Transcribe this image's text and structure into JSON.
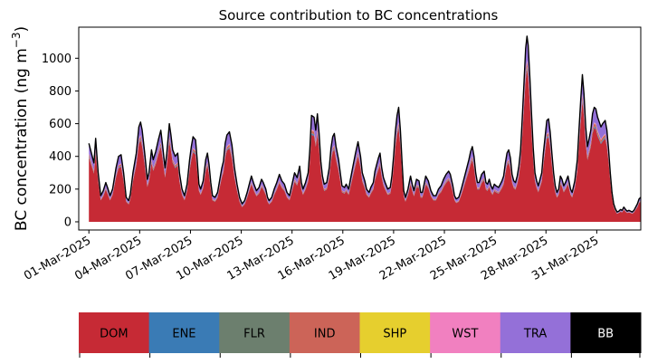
{
  "chart_data": {
    "type": "area",
    "stacked": true,
    "title": "Source contribution to BC concentrations",
    "ylabel": "BC concentration (ng m",
    "ylabel_sup": "−3",
    "ylabel_close": ")",
    "xlabel": "",
    "ylim": [
      -50,
      1190
    ],
    "yticks": [
      0,
      200,
      400,
      600,
      800,
      1000
    ],
    "xlim_days": [
      -0.6,
      32.6
    ],
    "xticks": [
      {
        "day": 0,
        "label": "01-Mar-2025"
      },
      {
        "day": 3,
        "label": "04-Mar-2025"
      },
      {
        "day": 6,
        "label": "07-Mar-2025"
      },
      {
        "day": 9,
        "label": "10-Mar-2025"
      },
      {
        "day": 12,
        "label": "13-Mar-2025"
      },
      {
        "day": 15,
        "label": "16-Mar-2025"
      },
      {
        "day": 18,
        "label": "19-Mar-2025"
      },
      {
        "day": 21,
        "label": "22-Mar-2025"
      },
      {
        "day": 24,
        "label": "25-Mar-2025"
      },
      {
        "day": 27,
        "label": "28-Mar-2025"
      },
      {
        "day": 30,
        "label": "31-Mar-2025"
      }
    ],
    "total_series": {
      "name": "Total",
      "color": "#000000",
      "points": [
        [
          0.0,
          480
        ],
        [
          0.15,
          420
        ],
        [
          0.3,
          360
        ],
        [
          0.4,
          510
        ],
        [
          0.55,
          300
        ],
        [
          0.7,
          160
        ],
        [
          0.85,
          190
        ],
        [
          1.0,
          240
        ],
        [
          1.1,
          210
        ],
        [
          1.25,
          160
        ],
        [
          1.4,
          200
        ],
        [
          1.6,
          330
        ],
        [
          1.75,
          400
        ],
        [
          1.9,
          410
        ],
        [
          2.05,
          300
        ],
        [
          2.2,
          150
        ],
        [
          2.35,
          130
        ],
        [
          2.45,
          170
        ],
        [
          2.6,
          300
        ],
        [
          2.8,
          420
        ],
        [
          2.95,
          580
        ],
        [
          3.05,
          610
        ],
        [
          3.15,
          560
        ],
        [
          3.3,
          420
        ],
        [
          3.45,
          260
        ],
        [
          3.55,
          300
        ],
        [
          3.7,
          440
        ],
        [
          3.8,
          380
        ],
        [
          3.95,
          430
        ],
        [
          4.1,
          500
        ],
        [
          4.25,
          560
        ],
        [
          4.35,
          470
        ],
        [
          4.5,
          330
        ],
        [
          4.6,
          420
        ],
        [
          4.75,
          600
        ],
        [
          4.85,
          530
        ],
        [
          4.95,
          440
        ],
        [
          5.1,
          400
        ],
        [
          5.25,
          420
        ],
        [
          5.35,
          300
        ],
        [
          5.5,
          200
        ],
        [
          5.65,
          160
        ],
        [
          5.8,
          230
        ],
        [
          5.95,
          380
        ],
        [
          6.05,
          460
        ],
        [
          6.15,
          520
        ],
        [
          6.3,
          500
        ],
        [
          6.4,
          380
        ],
        [
          6.5,
          230
        ],
        [
          6.6,
          200
        ],
        [
          6.75,
          250
        ],
        [
          6.9,
          380
        ],
        [
          7.0,
          420
        ],
        [
          7.1,
          350
        ],
        [
          7.2,
          240
        ],
        [
          7.3,
          160
        ],
        [
          7.45,
          150
        ],
        [
          7.6,
          180
        ],
        [
          7.75,
          270
        ],
        [
          7.85,
          330
        ],
        [
          7.95,
          370
        ],
        [
          8.05,
          480
        ],
        [
          8.15,
          530
        ],
        [
          8.3,
          550
        ],
        [
          8.45,
          470
        ],
        [
          8.6,
          330
        ],
        [
          8.75,
          230
        ],
        [
          8.9,
          150
        ],
        [
          9.05,
          110
        ],
        [
          9.2,
          130
        ],
        [
          9.35,
          180
        ],
        [
          9.5,
          240
        ],
        [
          9.6,
          280
        ],
        [
          9.75,
          230
        ],
        [
          9.9,
          190
        ],
        [
          10.05,
          210
        ],
        [
          10.2,
          260
        ],
        [
          10.3,
          240
        ],
        [
          10.45,
          200
        ],
        [
          10.55,
          150
        ],
        [
          10.65,
          130
        ],
        [
          10.8,
          150
        ],
        [
          10.95,
          200
        ],
        [
          11.1,
          240
        ],
        [
          11.25,
          290
        ],
        [
          11.4,
          250
        ],
        [
          11.55,
          230
        ],
        [
          11.7,
          180
        ],
        [
          11.85,
          160
        ],
        [
          12.0,
          230
        ],
        [
          12.15,
          300
        ],
        [
          12.3,
          270
        ],
        [
          12.45,
          340
        ],
        [
          12.55,
          240
        ],
        [
          12.65,
          200
        ],
        [
          12.8,
          240
        ],
        [
          12.95,
          300
        ],
        [
          13.05,
          440
        ],
        [
          13.15,
          650
        ],
        [
          13.3,
          640
        ],
        [
          13.4,
          560
        ],
        [
          13.5,
          660
        ],
        [
          13.6,
          540
        ],
        [
          13.7,
          370
        ],
        [
          13.8,
          280
        ],
        [
          13.9,
          230
        ],
        [
          14.05,
          240
        ],
        [
          14.2,
          330
        ],
        [
          14.3,
          450
        ],
        [
          14.4,
          520
        ],
        [
          14.5,
          540
        ],
        [
          14.6,
          460
        ],
        [
          14.75,
          380
        ],
        [
          14.85,
          300
        ],
        [
          14.95,
          220
        ],
        [
          15.1,
          210
        ],
        [
          15.2,
          230
        ],
        [
          15.35,
          200
        ],
        [
          15.45,
          260
        ],
        [
          15.6,
          340
        ],
        [
          15.75,
          420
        ],
        [
          15.9,
          490
        ],
        [
          16.05,
          400
        ],
        [
          16.15,
          300
        ],
        [
          16.3,
          250
        ],
        [
          16.4,
          200
        ],
        [
          16.55,
          180
        ],
        [
          16.65,
          210
        ],
        [
          16.8,
          240
        ],
        [
          16.9,
          310
        ],
        [
          17.0,
          350
        ],
        [
          17.1,
          390
        ],
        [
          17.2,
          420
        ],
        [
          17.3,
          330
        ],
        [
          17.4,
          270
        ],
        [
          17.5,
          240
        ],
        [
          17.65,
          200
        ],
        [
          17.8,
          210
        ],
        [
          17.9,
          280
        ],
        [
          18.0,
          400
        ],
        [
          18.1,
          550
        ],
        [
          18.2,
          650
        ],
        [
          18.3,
          700
        ],
        [
          18.4,
          560
        ],
        [
          18.5,
          360
        ],
        [
          18.6,
          190
        ],
        [
          18.7,
          150
        ],
        [
          18.85,
          200
        ],
        [
          19.0,
          280
        ],
        [
          19.1,
          230
        ],
        [
          19.2,
          190
        ],
        [
          19.35,
          260
        ],
        [
          19.5,
          250
        ],
        [
          19.6,
          180
        ],
        [
          19.7,
          180
        ],
        [
          19.8,
          230
        ],
        [
          19.9,
          280
        ],
        [
          20.05,
          250
        ],
        [
          20.2,
          190
        ],
        [
          20.35,
          160
        ],
        [
          20.5,
          160
        ],
        [
          20.65,
          200
        ],
        [
          20.8,
          220
        ],
        [
          20.95,
          260
        ],
        [
          21.1,
          290
        ],
        [
          21.25,
          310
        ],
        [
          21.35,
          290
        ],
        [
          21.5,
          220
        ],
        [
          21.6,
          160
        ],
        [
          21.7,
          140
        ],
        [
          21.85,
          150
        ],
        [
          22.0,
          200
        ],
        [
          22.15,
          260
        ],
        [
          22.3,
          320
        ],
        [
          22.45,
          380
        ],
        [
          22.55,
          430
        ],
        [
          22.65,
          460
        ],
        [
          22.75,
          400
        ],
        [
          22.85,
          300
        ],
        [
          22.95,
          240
        ],
        [
          23.05,
          240
        ],
        [
          23.2,
          290
        ],
        [
          23.35,
          310
        ],
        [
          23.45,
          240
        ],
        [
          23.55,
          230
        ],
        [
          23.65,
          260
        ],
        [
          23.75,
          220
        ],
        [
          23.85,
          200
        ],
        [
          23.95,
          230
        ],
        [
          24.05,
          220
        ],
        [
          24.2,
          210
        ],
        [
          24.3,
          230
        ],
        [
          24.4,
          250
        ],
        [
          24.5,
          280
        ],
        [
          24.6,
          360
        ],
        [
          24.7,
          420
        ],
        [
          24.8,
          440
        ],
        [
          24.9,
          390
        ],
        [
          25.0,
          290
        ],
        [
          25.1,
          250
        ],
        [
          25.2,
          240
        ],
        [
          25.3,
          280
        ],
        [
          25.4,
          340
        ],
        [
          25.5,
          440
        ],
        [
          25.6,
          640
        ],
        [
          25.7,
          840
        ],
        [
          25.8,
          1060
        ],
        [
          25.88,
          1135
        ],
        [
          25.95,
          1080
        ],
        [
          26.05,
          880
        ],
        [
          26.15,
          650
        ],
        [
          26.25,
          450
        ],
        [
          26.35,
          300
        ],
        [
          26.45,
          250
        ],
        [
          26.55,
          220
        ],
        [
          26.65,
          260
        ],
        [
          26.75,
          300
        ],
        [
          26.85,
          420
        ],
        [
          26.95,
          520
        ],
        [
          27.05,
          620
        ],
        [
          27.15,
          630
        ],
        [
          27.25,
          550
        ],
        [
          27.35,
          420
        ],
        [
          27.45,
          300
        ],
        [
          27.55,
          220
        ],
        [
          27.65,
          180
        ],
        [
          27.75,
          200
        ],
        [
          27.85,
          280
        ],
        [
          27.95,
          260
        ],
        [
          28.05,
          220
        ],
        [
          28.15,
          240
        ],
        [
          28.3,
          280
        ],
        [
          28.45,
          200
        ],
        [
          28.55,
          180
        ],
        [
          28.7,
          250
        ],
        [
          28.85,
          380
        ],
        [
          28.95,
          560
        ],
        [
          29.05,
          740
        ],
        [
          29.15,
          900
        ],
        [
          29.25,
          780
        ],
        [
          29.35,
          580
        ],
        [
          29.45,
          460
        ],
        [
          29.55,
          510
        ],
        [
          29.65,
          560
        ],
        [
          29.75,
          660
        ],
        [
          29.85,
          700
        ],
        [
          29.95,
          690
        ],
        [
          30.05,
          640
        ],
        [
          30.15,
          610
        ],
        [
          30.25,
          580
        ],
        [
          30.35,
          600
        ],
        [
          30.5,
          620
        ],
        [
          30.6,
          560
        ],
        [
          30.7,
          440
        ],
        [
          30.8,
          300
        ],
        [
          30.9,
          180
        ],
        [
          31.0,
          110
        ],
        [
          31.1,
          80
        ],
        [
          31.2,
          60
        ],
        [
          31.3,
          65
        ],
        [
          31.4,
          75
        ],
        [
          31.5,
          70
        ],
        [
          31.6,
          90
        ],
        [
          31.7,
          75
        ],
        [
          31.8,
          65
        ],
        [
          31.9,
          70
        ],
        [
          32.0,
          65
        ],
        [
          32.1,
          60
        ],
        [
          32.2,
          70
        ],
        [
          32.3,
          90
        ],
        [
          32.4,
          110
        ],
        [
          32.5,
          140
        ],
        [
          32.6,
          150
        ]
      ]
    },
    "series": [
      {
        "name": "DOM",
        "color": "#c62a35",
        "share_of_total": 0.82
      },
      {
        "name": "ENE",
        "color": "#3a7bb5",
        "share_of_total": 0.01
      },
      {
        "name": "FLR",
        "color": "#6c7f6e",
        "share_of_total": 0.005
      },
      {
        "name": "IND",
        "color": "#cc6458",
        "share_of_total": 0.025
      },
      {
        "name": "SHP",
        "color": "#e6cf2e",
        "share_of_total": 0.002
      },
      {
        "name": "WST",
        "color": "#f180c0",
        "share_of_total": 0.008
      },
      {
        "name": "TRA",
        "color": "#9470d8",
        "share_of_total": 0.13
      },
      {
        "name": "BB",
        "color": "#000000",
        "share_of_total": 0.0
      }
    ]
  },
  "legend": {
    "items": [
      {
        "label": "DOM",
        "color": "#c62a35",
        "text_color": "#000000"
      },
      {
        "label": "ENE",
        "color": "#3a7bb5",
        "text_color": "#000000"
      },
      {
        "label": "FLR",
        "color": "#6c7f6e",
        "text_color": "#000000"
      },
      {
        "label": "IND",
        "color": "#cc6458",
        "text_color": "#000000"
      },
      {
        "label": "SHP",
        "color": "#e6cf2e",
        "text_color": "#000000"
      },
      {
        "label": "WST",
        "color": "#f180c0",
        "text_color": "#000000"
      },
      {
        "label": "TRA",
        "color": "#9470d8",
        "text_color": "#000000"
      },
      {
        "label": "BB",
        "color": "#000000",
        "text_color": "#ffffff"
      }
    ]
  }
}
